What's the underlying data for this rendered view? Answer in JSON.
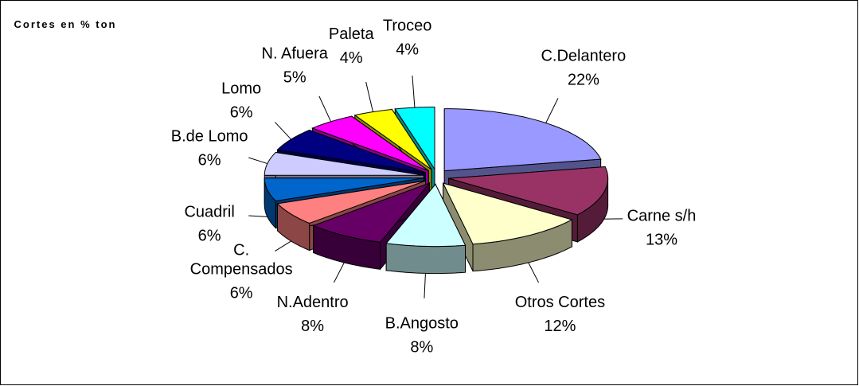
{
  "chart_data": {
    "type": "pie3d",
    "title": "Cortes en % ton",
    "categories": [
      "C.Delantero",
      "Carne s/h",
      "Otros Cortes",
      "B.Angosto",
      "N.Adentro",
      "C. Compensados",
      "Cuadril",
      "B.de Lomo",
      "Lomo",
      "N. Afuera",
      "Paleta",
      "Troceo"
    ],
    "values": [
      22,
      13,
      12,
      8,
      8,
      6,
      6,
      6,
      6,
      5,
      4,
      4
    ],
    "value_labels": [
      "22%",
      "13%",
      "12%",
      "8%",
      "8%",
      "6%",
      "6%",
      "6%",
      "6%",
      "5%",
      "4%",
      "4%"
    ],
    "colors": [
      "#9999ff",
      "#993366",
      "#ffffcc",
      "#ccffff",
      "#660066",
      "#ff8080",
      "#0066cc",
      "#ccccff",
      "#000080",
      "#ff00ff",
      "#ffff00",
      "#00ffff"
    ]
  }
}
